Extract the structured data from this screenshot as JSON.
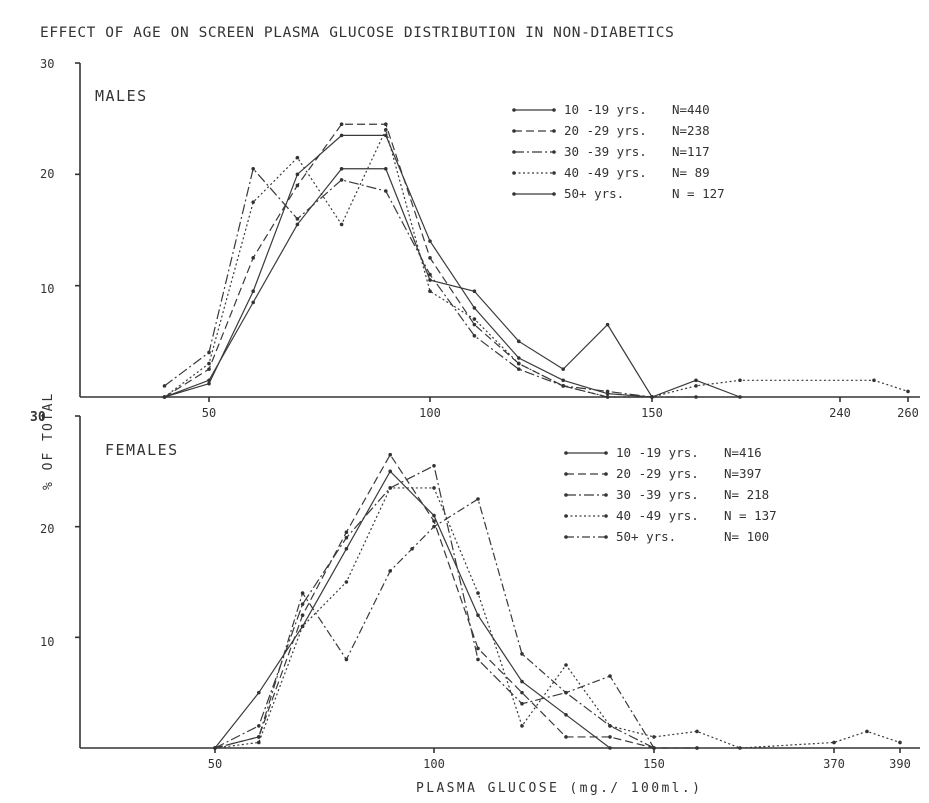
{
  "title": "EFFECT OF AGE ON SCREEN PLASMA GLUCOSE DISTRIBUTION IN NON-DIABETICS",
  "y_axis_label": "% OF TOTAL",
  "x_axis_label": "PLASMA GLUCOSE (mg./ 100ml.)",
  "chart_data": [
    {
      "type": "line",
      "panel": "MALES",
      "title": "MALES",
      "ylabel": "% OF TOTAL",
      "xlabel": "",
      "ylim": [
        0,
        30
      ],
      "yticks": [
        "30",
        "20",
        "10"
      ],
      "xticks": [
        "50",
        "100",
        "150",
        "240",
        "260"
      ],
      "legend_position": "top-right",
      "series": [
        {
          "name": "10 -19 yrs.",
          "n_label": "N=440",
          "dash": "",
          "x": [
            40,
            50,
            60,
            70,
            80,
            90,
            100,
            110,
            120,
            130,
            140,
            150
          ],
          "y": [
            0,
            1.2,
            9.5,
            20,
            23.5,
            23.5,
            14,
            8,
            3.5,
            1.5,
            0.3,
            0
          ]
        },
        {
          "name": "20 -29 yrs.",
          "n_label": "N=238",
          "dash": "8,4",
          "x": [
            40,
            50,
            60,
            70,
            80,
            90,
            100,
            110,
            120,
            130,
            140,
            150
          ],
          "y": [
            0,
            2.5,
            12.5,
            19,
            24.5,
            24.5,
            12.5,
            6.5,
            3,
            1,
            0,
            0
          ]
        },
        {
          "name": "30 -39 yrs.",
          "n_label": "N=117",
          "dash": "10,3,2,3",
          "x": [
            40,
            50,
            60,
            70,
            80,
            90,
            100,
            110,
            120,
            130,
            140,
            150,
            160
          ],
          "y": [
            1,
            4,
            20.5,
            16,
            19.5,
            18.5,
            11,
            5.5,
            2.5,
            1,
            0.5,
            0,
            0
          ]
        },
        {
          "name": "40 -49 yrs.",
          "n_label": "N= 89",
          "dash": "2,2.5",
          "x": [
            40,
            50,
            60,
            70,
            80,
            90,
            100,
            110,
            120,
            130,
            140,
            150,
            160,
            170,
            250,
            260
          ],
          "y": [
            0,
            3,
            17.5,
            21.5,
            15.5,
            24,
            9.5,
            7,
            3,
            1,
            0,
            0,
            1,
            1.5,
            1.5,
            0.5
          ]
        },
        {
          "name": "50+ yrs.",
          "n_label": "N = 127",
          "dash": "",
          "x": [
            40,
            50,
            60,
            70,
            80,
            90,
            100,
            110,
            120,
            130,
            140,
            150,
            160,
            170
          ],
          "y": [
            0,
            1.5,
            8.5,
            15.5,
            20.5,
            20.5,
            10.5,
            9.5,
            5,
            2.5,
            6.5,
            0,
            1.5,
            0
          ]
        }
      ]
    },
    {
      "type": "line",
      "panel": "FEMALES",
      "title": "FEMALES",
      "ylabel": "% OF TOTAL",
      "xlabel": "PLASMA GLUCOSE (mg./ 100ml.)",
      "ylim": [
        0,
        30
      ],
      "yticks": [
        "30",
        "20",
        "10"
      ],
      "xticks": [
        "50",
        "100",
        "150",
        "370",
        "390"
      ],
      "legend_position": "top-right",
      "series": [
        {
          "name": "10 -19 yrs.",
          "n_label": "N=416",
          "dash": "",
          "x": [
            50,
            60,
            70,
            80,
            90,
            100,
            110,
            120,
            130,
            140
          ],
          "y": [
            0,
            5,
            11,
            18,
            25,
            21,
            12,
            6,
            3,
            0
          ]
        },
        {
          "name": "20 -29 yrs.",
          "n_label": "N=397",
          "dash": "8,4",
          "x": [
            50,
            60,
            70,
            80,
            90,
            100,
            110,
            120,
            130,
            140,
            150,
            160
          ],
          "y": [
            0,
            1,
            12,
            19.5,
            26.5,
            20.5,
            9,
            5,
            1,
            1,
            0,
            0
          ]
        },
        {
          "name": "30 -39 yrs.",
          "n_label": "N= 218",
          "dash": "10,3,2,3",
          "x": [
            50,
            60,
            70,
            80,
            90,
            100,
            110,
            120,
            130,
            140,
            150,
            160
          ],
          "y": [
            0,
            2,
            13,
            19,
            23.5,
            25.5,
            8,
            4,
            5,
            2,
            0,
            0
          ]
        },
        {
          "name": "40 -49 yrs.",
          "n_label": "N = 137",
          "dash": "2,2.5",
          "x": [
            50,
            60,
            70,
            80,
            90,
            100,
            110,
            120,
            130,
            140,
            150,
            160,
            170,
            370,
            380,
            390
          ],
          "y": [
            0,
            0.5,
            11,
            15,
            23.5,
            23.5,
            14,
            2,
            7.5,
            2,
            1,
            1.5,
            0,
            0.5,
            1.5,
            0.5
          ]
        },
        {
          "name": "50+ yrs.",
          "n_label": "N= 100",
          "dash": "8,3,2,3",
          "x": [
            50,
            60,
            70,
            80,
            90,
            95,
            100,
            110,
            120,
            130,
            140,
            150
          ],
          "y": [
            0,
            1,
            14,
            8,
            16,
            18,
            20,
            22.5,
            8.5,
            5,
            6.5,
            0
          ]
        }
      ]
    }
  ]
}
